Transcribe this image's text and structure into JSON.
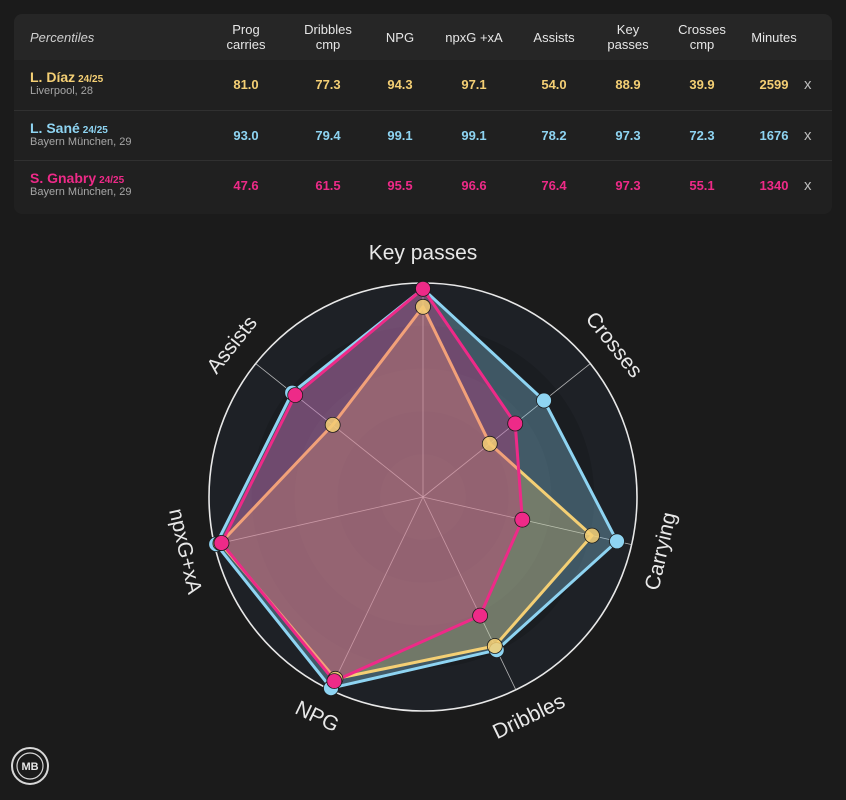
{
  "table": {
    "percentiles_label": "Percentiles",
    "columns": [
      [
        "Prog",
        "carries"
      ],
      [
        "Dribbles",
        "cmp"
      ],
      [
        "NPG"
      ],
      [
        "npxG +xA"
      ],
      [
        "Assists"
      ],
      [
        "Key",
        "passes"
      ],
      [
        "Crosses",
        "cmp"
      ],
      [
        "Minutes"
      ]
    ],
    "remove_label": "x",
    "players": [
      {
        "name": "L. Díaz",
        "season": "24/25",
        "club": "Liverpool, 28",
        "color": "#f4cf74",
        "values": [
          "81.0",
          "77.3",
          "94.3",
          "97.1",
          "54.0",
          "88.9",
          "39.9",
          "2599"
        ]
      },
      {
        "name": "L. Sané",
        "season": "24/25",
        "club": "Bayern München, 29",
        "color": "#8ed4f2",
        "values": [
          "93.0",
          "79.4",
          "99.1",
          "99.1",
          "78.2",
          "97.3",
          "72.3",
          "1676"
        ]
      },
      {
        "name": "S. Gnabry",
        "season": "24/25",
        "club": "Bayern München, 29",
        "color": "#ee2a88",
        "values": [
          "47.6",
          "61.5",
          "95.5",
          "96.6",
          "76.4",
          "97.3",
          "55.1",
          "1340"
        ]
      }
    ]
  },
  "logo_text": "MB",
  "chart_data": {
    "type": "radar",
    "axes": [
      "Key passes",
      "Crosses",
      "Carrying",
      "Dribbles",
      "NPG",
      "npxG+xA",
      "Assists"
    ],
    "range": [
      0,
      100
    ],
    "series": [
      {
        "name": "L. Díaz",
        "color": "#f4cf74",
        "values": [
          88.9,
          39.9,
          81.0,
          77.3,
          94.3,
          97.1,
          54.0
        ]
      },
      {
        "name": "L. Sané",
        "color": "#8ed4f2",
        "values": [
          97.3,
          72.3,
          93.0,
          79.4,
          99.1,
          99.1,
          78.2
        ]
      },
      {
        "name": "S. Gnabry",
        "color": "#ee2a88",
        "values": [
          97.3,
          55.1,
          47.6,
          61.5,
          95.5,
          96.6,
          76.4
        ]
      }
    ]
  }
}
